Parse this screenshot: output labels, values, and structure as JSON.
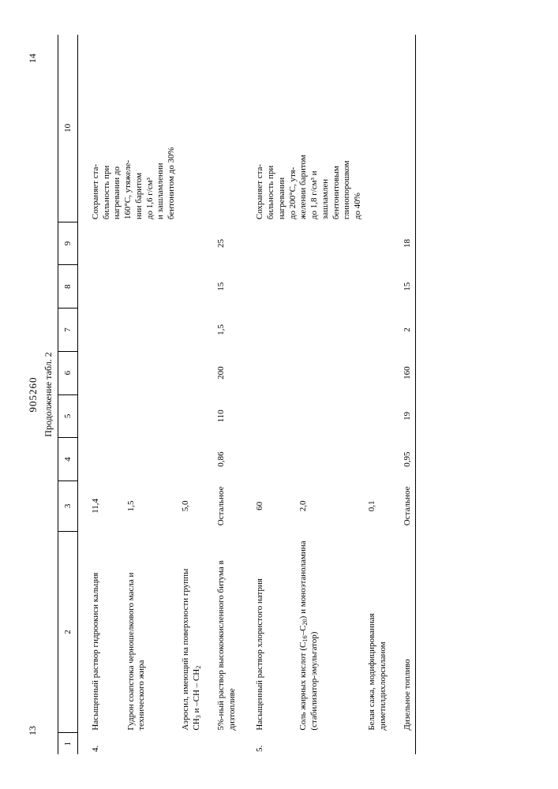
{
  "header": {
    "left_page_num": "13",
    "doc_number": "905260",
    "right_page_num": "14",
    "caption": "Продолжение табл. 2"
  },
  "col_numbers": [
    "1",
    "2",
    "3",
    "4",
    "5",
    "6",
    "7",
    "8",
    "9",
    "10"
  ],
  "col_widths": [
    "3%",
    "28%",
    "7%",
    "6%",
    "6%",
    "6%",
    "6%",
    "6%",
    "6%",
    "26%"
  ],
  "block4": {
    "num": "4.",
    "rows": [
      {
        "name": "Насыщенный раствор гидроокиси кальция",
        "c3": "11,4"
      },
      {
        "name": "Гудрон соапстока черношелкового масла и технического жира",
        "c3": "1,5"
      },
      {
        "name_html": "Аэросил, имеющий на поверхности группы <span class='formula'>CH<sub>3</sub> и –CH – CH<sub>2</sub></span>",
        "c3": "5,0"
      },
      {
        "name": "5%-ный раствор высокоокисленного битума в дизтопливе",
        "c3": "Остальное",
        "c4": "0,86",
        "c5": "110",
        "c6": "200",
        "c7": "1,5",
        "c8": "15",
        "c9": "25"
      }
    ],
    "notes": [
      "Сохраняет ста-",
      "бильность при",
      "нагревании до",
      "160°С, утяжеле-",
      "нии баритом",
      "до 1,6 г/см³",
      "и зашламлении",
      "бентонитом до 30%"
    ]
  },
  "block5": {
    "num": "5.",
    "rows": [
      {
        "name": "Насыщенный раствор хлористого натрия",
        "c3": "60"
      },
      {
        "name_html": "Соль жирных кислот (C<sub>16</sub>–C<sub>20</sub>) и моноэтаноламина (стабилизатор-эмульгатор)",
        "c3": "2,0"
      },
      {
        "name": "Белая сажа, модифицированная диметилдихлорсиланом",
        "c3": "0,1"
      },
      {
        "name": "Дизельное топливо",
        "c3": "Остальное",
        "c4": "0,95",
        "c5": "19",
        "c6": "160",
        "c7": "2",
        "c8": "15",
        "c9": "18"
      }
    ],
    "notes": [
      "Сохраняет ста-",
      "бильность при",
      "нагревании",
      "до 200°С, утя-",
      "желении баритом",
      "до 1,8 г/см³ и",
      "зашламлен",
      "бентонитовым",
      "глинопорошком",
      "до 40%"
    ]
  }
}
